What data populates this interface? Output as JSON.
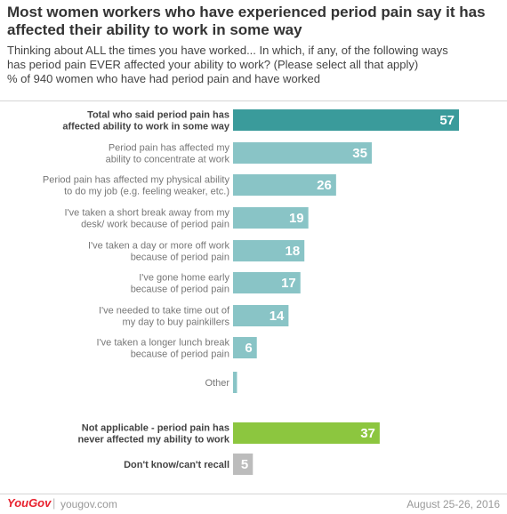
{
  "header": {
    "title": "Most women workers who have experienced period pain say it has affected their ability to work in some way",
    "subtitle_lines": [
      "Thinking about ALL the times you have worked... In which, if any, of the following ways",
      "has period pain EVER affected your ability to work? (Please select all that apply)",
      "% of 940 women who have had period pain and have worked"
    ]
  },
  "chart_data": {
    "type": "bar",
    "orientation": "horizontal",
    "categories": [
      [
        "Total who said period pain has",
        "affected ability to work in some way"
      ],
      [
        "Period pain has affected my",
        "ability to concentrate at work"
      ],
      [
        "Period pain has affected my physical ability",
        "to do my job (e.g. feeling weaker, etc.)"
      ],
      [
        "I've taken a short break away from my",
        "desk/ work because of period pain"
      ],
      [
        "I've taken a day or more off work",
        "because of period pain"
      ],
      [
        "I've gone home early",
        "because of period pain"
      ],
      [
        "I've needed to take time out of",
        "my day to buy painkillers"
      ],
      [
        "I've taken a longer lunch break",
        "because of period pain"
      ],
      [
        "Other"
      ],
      [
        "Not applicable - period pain has",
        "never affected my ability to work"
      ],
      [
        "Don't know/can't recall"
      ]
    ],
    "values": [
      57,
      35,
      26,
      19,
      18,
      17,
      14,
      6,
      1,
      37,
      5
    ],
    "bold": [
      true,
      false,
      false,
      false,
      false,
      false,
      false,
      false,
      false,
      true,
      true
    ],
    "colors": [
      "#3a9b9b",
      "#89c4c6",
      "#89c4c6",
      "#89c4c6",
      "#89c4c6",
      "#89c4c6",
      "#89c4c6",
      "#89c4c6",
      "#89c4c6",
      "#8cc63f",
      "#bcbcbc"
    ],
    "value_labels": [
      "57",
      "35",
      "26",
      "19",
      "18",
      "17",
      "14",
      "6",
      "1",
      "37",
      "5"
    ],
    "xlim": [
      0,
      60
    ],
    "grid": false,
    "legend": "none"
  },
  "footer": {
    "brand": "YouGov",
    "separator": "|",
    "site": "yougov.com",
    "date": "August 25-26, 2016"
  }
}
